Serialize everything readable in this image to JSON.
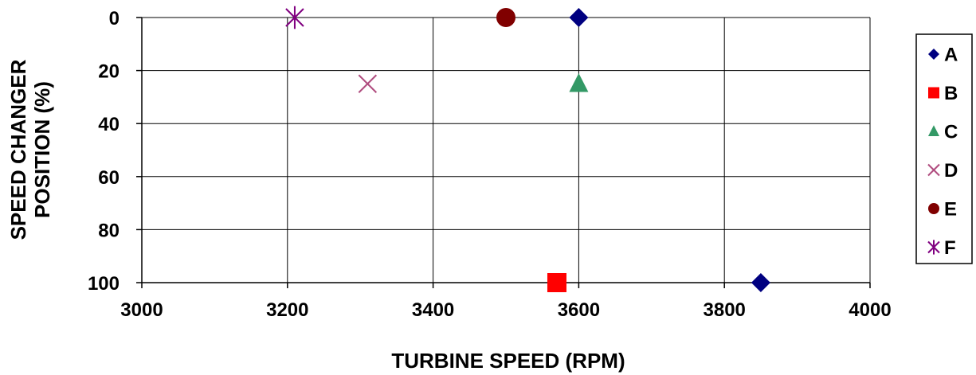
{
  "chart_data": {
    "type": "scatter",
    "title": "",
    "xlabel": "TURBINE SPEED (RPM)",
    "ylabel_lines": [
      "SPEED CHANGER",
      "POSITION (%)"
    ],
    "xlim": [
      3000,
      4000
    ],
    "ylim": [
      0,
      100
    ],
    "y_inverted": true,
    "x_ticks": [
      3000,
      3200,
      3400,
      3600,
      3800,
      4000
    ],
    "y_ticks": [
      0,
      20,
      40,
      60,
      80,
      100
    ],
    "grid": true,
    "legend_position": "right",
    "series": [
      {
        "name": "A",
        "marker": "diamond",
        "color": "#000080",
        "points": [
          [
            3600,
            0
          ],
          [
            3850,
            100
          ]
        ]
      },
      {
        "name": "B",
        "marker": "square",
        "color": "#ff0000",
        "points": [
          [
            3570,
            100
          ]
        ]
      },
      {
        "name": "C",
        "marker": "triangle",
        "color": "#339966",
        "points": [
          [
            3600,
            25
          ]
        ]
      },
      {
        "name": "D",
        "marker": "x",
        "color": "#b04d7f",
        "points": [
          [
            3310,
            25
          ]
        ]
      },
      {
        "name": "E",
        "marker": "circle",
        "color": "#800000",
        "points": [
          [
            3500,
            0
          ]
        ]
      },
      {
        "name": "F",
        "marker": "asterisk",
        "color": "#800080",
        "points": [
          [
            3210,
            0
          ]
        ]
      }
    ]
  }
}
